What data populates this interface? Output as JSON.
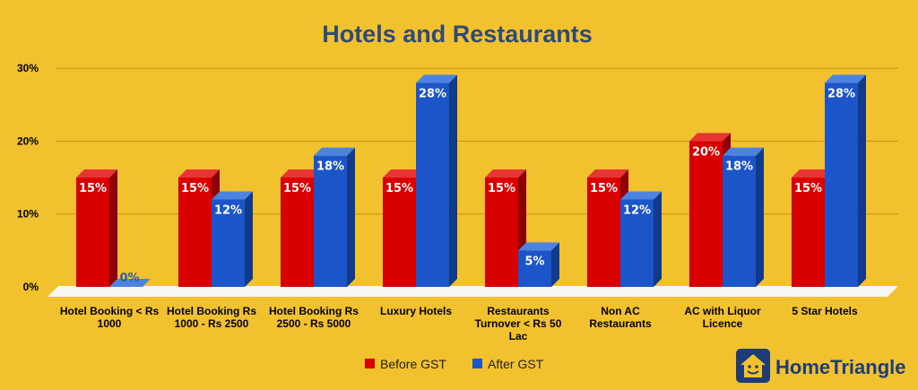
{
  "chart_data": {
    "type": "bar",
    "title": "Hotels and Restaurants",
    "categories": [
      [
        "Hotel Booking < Rs",
        "1000"
      ],
      [
        "Hotel Booking Rs",
        "1000 - Rs 2500"
      ],
      [
        "Hotel Booking Rs",
        "2500 - Rs 5000"
      ],
      [
        "Luxury Hotels"
      ],
      [
        "Restaurants",
        "Turnover < Rs 50",
        "Lac"
      ],
      [
        "Non AC",
        "Restaurants"
      ],
      [
        "AC with Liquor",
        "Licence"
      ],
      [
        "5 Star Hotels"
      ]
    ],
    "series": [
      {
        "name": "Before GST",
        "values": [
          15,
          15,
          15,
          15,
          15,
          15,
          20,
          15
        ]
      },
      {
        "name": "After GST",
        "values": [
          0,
          12,
          18,
          28,
          5,
          12,
          18,
          28
        ]
      }
    ],
    "data_labels": [
      [
        "15%",
        "15%",
        "15%",
        "15%",
        "15%",
        "15%",
        "20%",
        "15%"
      ],
      [
        "0%",
        "12%",
        "18%",
        "28%",
        "5%",
        "12%",
        "18%",
        "28%"
      ]
    ],
    "yticks": [
      0,
      10,
      20,
      30
    ],
    "ytick_labels": [
      "0%",
      "10%",
      "20%",
      "30%"
    ],
    "ylim": [
      0,
      30
    ],
    "grid": true,
    "legend_position": "bottom-center",
    "colors": {
      "before": "#D90000",
      "before_top": "#E83434",
      "before_side": "#8E0000",
      "after": "#1C55C9",
      "after_top": "#4C82E0",
      "after_side": "#123A8A",
      "background": "#F2C12E",
      "gridline": "#C9950A",
      "title": "#2E4A7D"
    }
  },
  "logo": {
    "text": "HomeTriangle",
    "icon": "home-triangle-logo-icon"
  }
}
